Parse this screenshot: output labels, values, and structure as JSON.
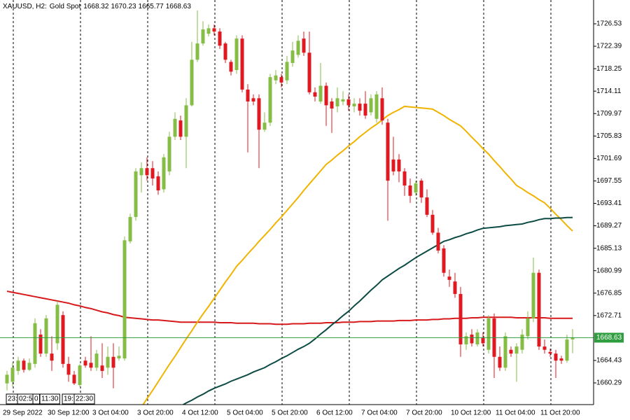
{
  "chart_data": {
    "type": "candlestick",
    "symbol": "XAUUSD, H2:",
    "description": "Gold Spot",
    "up_color": "#86bd45",
    "down_color": "#e0181f",
    "price_line_color": "#2e9e3e",
    "ylim": [
      1656.29,
      1730.92
    ],
    "yticks": [
      1660.29,
      1664.43,
      1672.71,
      1676.85,
      1680.99,
      1685.13,
      1689.27,
      1693.41,
      1697.55,
      1701.69,
      1705.83,
      1709.97,
      1714.11,
      1718.25,
      1722.39,
      1726.53
    ],
    "categories": [
      "29 Sep 2022",
      null,
      null,
      null,
      null,
      null,
      null,
      null,
      "30 Sep 12:00",
      null,
      null,
      null,
      null,
      null,
      null,
      null,
      "3 Oct 04:00",
      null,
      null,
      null,
      null,
      null,
      null,
      null,
      "3 Oct 20:00",
      null,
      null,
      null,
      null,
      null,
      null,
      null,
      "4 Oct 12:00",
      null,
      null,
      null,
      null,
      null,
      null,
      null,
      "5 Oct 04:00",
      null,
      null,
      null,
      null,
      null,
      null,
      null,
      "5 Oct 20:00",
      null,
      null,
      null,
      null,
      null,
      null,
      null,
      "6 Oct 12:00",
      null,
      null,
      null,
      null,
      null,
      null,
      null,
      "7 Oct 04:00",
      null,
      null,
      null,
      null,
      null,
      null,
      null,
      "7 Oct 20:00",
      null,
      null,
      null,
      null,
      null,
      null,
      null,
      "10 Oct 12:00",
      null,
      null,
      null,
      null,
      null,
      null,
      null,
      "11 Oct 04:00",
      null,
      null,
      null,
      null,
      null,
      null,
      null,
      "11 Oct 20:00",
      null,
      null,
      null,
      null,
      null
    ],
    "open": [
      1660.2,
      1660.5,
      1662.5,
      1664.4,
      1662.7,
      1663.8,
      1669.2,
      1665.7,
      1665.7,
      1667.6,
      1672.8,
      1663.8,
      1661.8,
      1659.9,
      1664.4,
      1664.0,
      1663.1,
      1663.5,
      1663.1,
      1665.1,
      1664.8,
      1664.8,
      1686.4,
      1690.9,
      1698.6,
      1699.9,
      1699.9,
      1698.4,
      1696.0,
      1699.3,
      1705.7,
      1708.7,
      1705.7,
      1711.5,
      1719.9,
      1722.9,
      1724.7,
      1725.7,
      1725.1,
      1722.9,
      1719.5,
      1718.0,
      1723.8,
      1714.4,
      1712.8,
      1712.8,
      1707.0,
      1708.3,
      1716.1,
      1716.7,
      1716.1,
      1719.3,
      1720.8,
      1723.8,
      1721.2,
      1713.9,
      1712.2,
      1715.1,
      1712.2,
      1711.3,
      1712.2,
      1712.6,
      1711.3,
      1711.8,
      1711.8,
      1710.2,
      1709.0,
      1712.8,
      1708.3,
      1701.5,
      1701.5,
      1699.3,
      1696.7,
      1695.4,
      1697.6,
      1694.5,
      1691.3,
      1688.0,
      1685.1,
      1679.9,
      1679.0,
      1676.7,
      1667.4,
      1669.2,
      1667.4,
      1668.7,
      1666.4,
      1672.2,
      1665.1,
      1663.1,
      1666.4,
      1665.7,
      1666.4,
      1668.9,
      1672.2,
      1680.6,
      1667.0,
      1666.0,
      1665.7,
      1664.8,
      1664.4,
      1668.32
    ],
    "high": [
      1662.5,
      1664.0,
      1665.1,
      1664.8,
      1664.8,
      1672.2,
      1670.2,
      1672.8,
      1668.9,
      1675.4,
      1673.5,
      1665.1,
      1662.5,
      1663.8,
      1665.1,
      1668.9,
      1666.4,
      1667.6,
      1667.0,
      1667.6,
      1667.0,
      1687.3,
      1691.5,
      1699.9,
      1701.0,
      1701.9,
      1701.2,
      1699.3,
      1702.5,
      1706.6,
      1710.2,
      1709.6,
      1712.8,
      1723.2,
      1729.0,
      1727.0,
      1726.4,
      1726.4,
      1725.7,
      1723.2,
      1719.9,
      1724.4,
      1724.4,
      1715.4,
      1713.5,
      1713.5,
      1710.2,
      1717.3,
      1718.0,
      1717.3,
      1720.6,
      1723.2,
      1724.4,
      1725.1,
      1725.1,
      1714.8,
      1719.3,
      1715.7,
      1712.8,
      1714.8,
      1714.1,
      1713.5,
      1712.8,
      1712.8,
      1714.1,
      1713.5,
      1714.1,
      1714.8,
      1709.0,
      1705.7,
      1702.5,
      1699.9,
      1698.0,
      1697.6,
      1698.0,
      1696.0,
      1692.2,
      1688.9,
      1685.7,
      1681.2,
      1680.6,
      1678.0,
      1669.6,
      1670.2,
      1670.2,
      1669.6,
      1672.8,
      1673.1,
      1667.0,
      1669.6,
      1667.0,
      1667.6,
      1670.2,
      1673.5,
      1683.4,
      1681.2,
      1668.3,
      1666.6,
      1666.4,
      1665.3,
      1669.2,
      1670.23
    ],
    "low": [
      1658.9,
      1659.6,
      1661.8,
      1662.2,
      1662.5,
      1663.1,
      1665.1,
      1665.1,
      1662.5,
      1666.4,
      1663.1,
      1660.5,
      1659.9,
      1659.6,
      1663.1,
      1662.5,
      1662.5,
      1661.2,
      1661.8,
      1659.3,
      1664.4,
      1664.4,
      1686.0,
      1690.2,
      1695.4,
      1697.6,
      1696.7,
      1695.0,
      1695.4,
      1698.6,
      1705.1,
      1705.1,
      1699.9,
      1711.3,
      1719.5,
      1722.5,
      1724.2,
      1724.4,
      1721.9,
      1719.3,
      1717.0,
      1717.3,
      1713.9,
      1702.8,
      1711.5,
      1699.9,
      1706.6,
      1707.7,
      1715.4,
      1714.8,
      1715.4,
      1718.6,
      1720.3,
      1720.6,
      1713.5,
      1712.2,
      1711.8,
      1707.7,
      1706.4,
      1710.2,
      1711.5,
      1710.5,
      1710.2,
      1709.6,
      1709.0,
      1709.6,
      1708.3,
      1707.9,
      1690.2,
      1698.6,
      1697.3,
      1694.8,
      1693.5,
      1694.8,
      1693.5,
      1690.9,
      1687.6,
      1684.2,
      1679.9,
      1678.0,
      1676.0,
      1665.1,
      1666.4,
      1667.0,
      1667.0,
      1667.0,
      1665.7,
      1661.2,
      1662.5,
      1662.5,
      1665.1,
      1660.5,
      1665.7,
      1668.3,
      1671.5,
      1666.4,
      1665.7,
      1665.1,
      1661.2,
      1663.8,
      1664.0,
      1665.77
    ],
    "close": [
      1661.8,
      1663.1,
      1664.4,
      1662.7,
      1664.0,
      1671.3,
      1665.7,
      1672.2,
      1664.4,
      1674.7,
      1663.8,
      1661.8,
      1660.2,
      1663.5,
      1663.5,
      1663.1,
      1665.7,
      1662.5,
      1665.1,
      1663.1,
      1665.3,
      1686.6,
      1690.9,
      1699.3,
      1699.9,
      1698.6,
      1698.0,
      1695.8,
      1701.9,
      1705.7,
      1709.0,
      1705.7,
      1711.5,
      1719.9,
      1722.9,
      1725.5,
      1725.7,
      1725.1,
      1722.5,
      1719.9,
      1717.7,
      1723.8,
      1714.4,
      1712.2,
      1712.2,
      1707.0,
      1708.3,
      1716.7,
      1717.0,
      1715.7,
      1719.5,
      1721.6,
      1723.4,
      1721.2,
      1713.9,
      1713.1,
      1715.1,
      1711.5,
      1710.9,
      1712.8,
      1712.6,
      1711.5,
      1711.8,
      1710.5,
      1709.6,
      1712.8,
      1713.5,
      1708.7,
      1697.6,
      1699.3,
      1699.3,
      1696.7,
      1694.8,
      1697.1,
      1694.5,
      1691.3,
      1688.0,
      1684.7,
      1680.6,
      1679.3,
      1676.7,
      1667.4,
      1668.9,
      1667.6,
      1669.6,
      1667.6,
      1672.2,
      1665.1,
      1663.1,
      1668.9,
      1665.7,
      1667.0,
      1669.2,
      1672.2,
      1680.6,
      1667.0,
      1666.4,
      1665.7,
      1664.4,
      1664.4,
      1668.3,
      1668.63
    ],
    "overlays": [
      {
        "color": "#d7191c",
        "values": [
          1677.2,
          1677.0,
          1676.8,
          1676.6,
          1676.4,
          1676.2,
          1676.0,
          1675.8,
          1675.6,
          1675.4,
          1675.2,
          1675.0,
          1674.7,
          1674.5,
          1674.2,
          1674.0,
          1673.7,
          1673.4,
          1673.2,
          1672.9,
          1672.7,
          1672.4,
          1672.3,
          1672.2,
          1672.1,
          1672.0,
          1671.9,
          1671.9,
          1671.8,
          1671.7,
          1671.6,
          1671.5,
          1671.5,
          1671.5,
          1671.5,
          1671.5,
          1671.5,
          1671.5,
          1671.4,
          1671.4,
          1671.4,
          1671.3,
          1671.3,
          1671.3,
          1671.3,
          1671.2,
          1671.2,
          1671.2,
          1671.1,
          1671.1,
          1671.1,
          1671.2,
          1671.2,
          1671.2,
          1671.3,
          1671.3,
          1671.3,
          1671.4,
          1671.4,
          1671.4,
          1671.5,
          1671.5,
          1671.5,
          1671.6,
          1671.6,
          1671.6,
          1671.7,
          1671.7,
          1671.7,
          1671.7,
          1671.8,
          1671.8,
          1671.8,
          1671.9,
          1671.9,
          1671.9,
          1672.0,
          1672.0,
          1672.1,
          1672.1,
          1672.2,
          1672.2,
          1672.2,
          1672.3,
          1672.3,
          1672.4,
          1672.4,
          1672.4,
          1672.4,
          1672.4,
          1672.4,
          1672.3,
          1672.3,
          1672.3,
          1672.3,
          1672.3,
          1672.3,
          1672.2,
          1672.2,
          1672.2,
          1672.2,
          1672.2
        ]
      },
      {
        "color": "#f0b400",
        "values": [
          null,
          null,
          null,
          null,
          null,
          null,
          null,
          null,
          null,
          null,
          null,
          null,
          null,
          null,
          null,
          null,
          null,
          null,
          null,
          null,
          null,
          null,
          null,
          null,
          1655.8,
          1657.4,
          1658.9,
          1660.5,
          1662.1,
          1663.7,
          1665.2,
          1666.8,
          1668.4,
          1669.9,
          1671.5,
          1673.0,
          1674.4,
          1675.9,
          1677.4,
          1678.9,
          1680.3,
          1681.8,
          1682.9,
          1684.1,
          1685.2,
          1686.4,
          1687.5,
          1688.6,
          1689.8,
          1690.9,
          1692.1,
          1693.3,
          1694.5,
          1695.8,
          1697.0,
          1698.2,
          1699.4,
          1700.6,
          1701.4,
          1702.3,
          1703.1,
          1704.0,
          1704.8,
          1705.7,
          1706.5,
          1707.3,
          1708.0,
          1708.8,
          1709.6,
          1710.2,
          1710.7,
          1711.3,
          1711.2,
          1711.1,
          1711.0,
          1710.9,
          1710.8,
          1710.2,
          1709.6,
          1708.9,
          1708.3,
          1707.7,
          1706.7,
          1705.6,
          1704.6,
          1703.5,
          1702.5,
          1701.3,
          1700.2,
          1699.0,
          1697.9,
          1696.7,
          1696.1,
          1695.4,
          1694.8,
          1694.1,
          1693.5,
          1692.5,
          1691.4,
          1690.4,
          1689.3,
          1688.3
        ]
      },
      {
        "color": "#0d4b45",
        "values": [
          null,
          null,
          null,
          null,
          null,
          null,
          null,
          null,
          null,
          null,
          null,
          null,
          null,
          null,
          null,
          null,
          null,
          null,
          null,
          null,
          null,
          null,
          null,
          null,
          null,
          null,
          null,
          null,
          null,
          null,
          null,
          1656.0,
          1656.6,
          1657.1,
          1657.7,
          1658.2,
          1658.8,
          1659.3,
          1659.7,
          1660.1,
          1660.6,
          1661.0,
          1661.4,
          1661.8,
          1662.3,
          1662.7,
          1663.1,
          1663.7,
          1664.2,
          1664.8,
          1665.3,
          1665.9,
          1666.5,
          1667.0,
          1667.6,
          1668.4,
          1669.3,
          1670.1,
          1671.0,
          1671.8,
          1672.7,
          1673.5,
          1674.5,
          1675.4,
          1676.4,
          1677.4,
          1678.3,
          1679.3,
          1680.0,
          1680.7,
          1681.4,
          1682.0,
          1682.7,
          1683.4,
          1684.0,
          1684.6,
          1685.2,
          1685.8,
          1686.4,
          1686.7,
          1687.1,
          1687.4,
          1687.8,
          1688.1,
          1688.5,
          1688.8,
          1688.9,
          1689.0,
          1689.1,
          1689.3,
          1689.4,
          1689.5,
          1689.6,
          1689.9,
          1690.1,
          1690.4,
          1690.6,
          1690.6,
          1690.7,
          1690.7,
          1690.8,
          1690.8
        ]
      }
    ],
    "time_markers": [
      "23:",
      "02:50",
      "0",
      "11:30",
      "19:",
      "22:30"
    ]
  }
}
